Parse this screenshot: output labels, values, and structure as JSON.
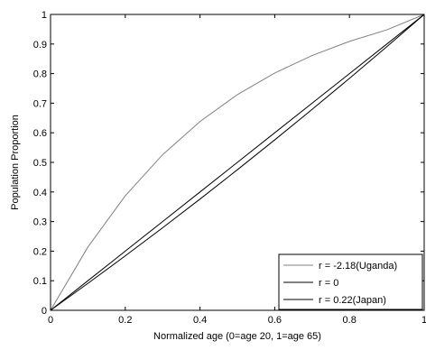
{
  "chart_data": {
    "type": "line",
    "title": "",
    "xlabel": "Normalized age (0=age 20, 1=age 65)",
    "ylabel": "Population Proportion",
    "xlim": [
      0,
      1
    ],
    "ylim": [
      0,
      1
    ],
    "xticks": [
      0,
      0.2,
      0.4,
      0.6,
      0.8,
      1
    ],
    "xtick_labels": [
      "0",
      "0.2",
      "0.4",
      "0.6",
      "0.8",
      "1"
    ],
    "yticks": [
      0,
      0.1,
      0.2,
      0.3,
      0.4,
      0.5,
      0.6,
      0.7,
      0.8,
      0.9,
      1
    ],
    "ytick_labels": [
      "0",
      "0.1",
      "0.2",
      "0.3",
      "0.4",
      "0.5",
      "0.6",
      "0.7",
      "0.8",
      "0.9",
      "1"
    ],
    "grid": false,
    "legend_position": "bottom-right",
    "x": [
      0,
      0.1,
      0.2,
      0.3,
      0.4,
      0.5,
      0.6,
      0.7,
      0.8,
      0.9,
      1
    ],
    "series": [
      {
        "name": "r = -2.18(Uganda)",
        "color": "#808080",
        "values": [
          0,
          0.214,
          0.387,
          0.526,
          0.638,
          0.729,
          0.802,
          0.861,
          0.909,
          0.948,
          1
        ]
      },
      {
        "name": "r = 0",
        "color": "#000000",
        "values": [
          0,
          0.1,
          0.2,
          0.3,
          0.4,
          0.5,
          0.6,
          0.7,
          0.8,
          0.9,
          1
        ]
      },
      {
        "name": "r = 0.22(Japan)",
        "color": "#000000",
        "values": [
          0,
          0.091,
          0.184,
          0.279,
          0.376,
          0.475,
          0.576,
          0.679,
          0.784,
          0.891,
          1
        ]
      }
    ]
  }
}
